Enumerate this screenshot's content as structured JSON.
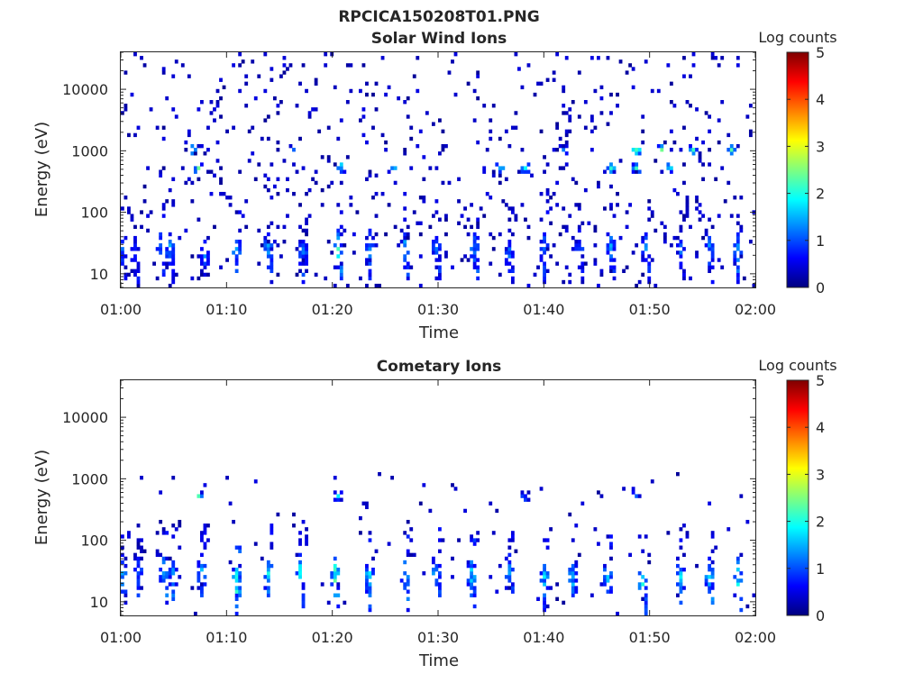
{
  "figure": {
    "title": "RPCICA150208T01.PNG"
  },
  "colormap": {
    "name": "jet",
    "stops": [
      "#00007f",
      "#0000ff",
      "#007fff",
      "#00ffff",
      "#7fff7f",
      "#ffff00",
      "#ff7f00",
      "#ff0000",
      "#7f0000"
    ]
  },
  "chart_data": [
    {
      "type": "heatmap",
      "title": "Solar Wind Ions",
      "xlabel": "Time",
      "ylabel": "Energy (eV)",
      "x_tick_labels": [
        "01:00",
        "01:10",
        "01:20",
        "01:30",
        "01:40",
        "01:50",
        "02:00"
      ],
      "x_range_minutes": [
        0,
        60
      ],
      "y_scale": "log",
      "y_range": [
        6,
        40000
      ],
      "y_ticks": [
        10,
        100,
        1000,
        10000
      ],
      "y_tick_labels": [
        "10",
        "100",
        "1000",
        "10000"
      ],
      "colorbar": {
        "label": "Log counts",
        "range": [
          0,
          5
        ],
        "ticks": [
          0,
          1,
          2,
          3,
          4,
          5
        ],
        "tick_labels": [
          "0",
          "1",
          "2",
          "3",
          "4",
          "5"
        ]
      },
      "bursts": [
        {
          "t": 0.2,
          "e": 25,
          "v": 1.2
        },
        {
          "t": 1.3,
          "e": 20,
          "v": 1.0
        },
        {
          "t": 3.8,
          "e": 25,
          "v": 1.3
        },
        {
          "t": 4.6,
          "e": 25,
          "v": 1.5
        },
        {
          "t": 7.8,
          "e": 20,
          "v": 1.2
        },
        {
          "t": 10.8,
          "e": 25,
          "v": 1.8
        },
        {
          "t": 14.0,
          "e": 25,
          "v": 1.6
        },
        {
          "t": 17.1,
          "e": 22,
          "v": 1.4
        },
        {
          "t": 20.5,
          "e": 25,
          "v": 2.0
        },
        {
          "t": 23.4,
          "e": 25,
          "v": 1.5
        },
        {
          "t": 26.8,
          "e": 25,
          "v": 1.6
        },
        {
          "t": 29.8,
          "e": 25,
          "v": 1.3
        },
        {
          "t": 33.4,
          "e": 25,
          "v": 1.5
        },
        {
          "t": 36.8,
          "e": 22,
          "v": 1.3
        },
        {
          "t": 39.9,
          "e": 25,
          "v": 1.4
        },
        {
          "t": 43.4,
          "e": 25,
          "v": 1.2
        },
        {
          "t": 46.3,
          "e": 25,
          "v": 1.5
        },
        {
          "t": 49.7,
          "e": 25,
          "v": 1.3
        },
        {
          "t": 52.9,
          "e": 25,
          "v": 1.2
        },
        {
          "t": 55.7,
          "e": 25,
          "v": 1.5
        },
        {
          "t": 58.2,
          "e": 25,
          "v": 1.7
        }
      ],
      "hotspots": [
        {
          "t": 6.6,
          "e": 1100,
          "v": 2.2
        },
        {
          "t": 7.2,
          "e": 500,
          "v": 2.6
        },
        {
          "t": 16.3,
          "e": 1100,
          "v": 1.8
        },
        {
          "t": 20.8,
          "e": 500,
          "v": 2.1
        },
        {
          "t": 26.0,
          "e": 500,
          "v": 2.0
        },
        {
          "t": 35.8,
          "e": 500,
          "v": 1.9
        },
        {
          "t": 38.2,
          "e": 500,
          "v": 2.2
        },
        {
          "t": 41.9,
          "e": 1100,
          "v": 1.9
        },
        {
          "t": 46.2,
          "e": 500,
          "v": 1.9
        },
        {
          "t": 48.6,
          "e": 1100,
          "v": 2.4
        },
        {
          "t": 48.8,
          "e": 500,
          "v": 2.5
        },
        {
          "t": 51.2,
          "e": 1100,
          "v": 2.3
        },
        {
          "t": 51.6,
          "e": 500,
          "v": 2.4
        },
        {
          "t": 54.2,
          "e": 1100,
          "v": 2.0
        },
        {
          "t": 57.6,
          "e": 1100,
          "v": 2.1
        }
      ],
      "scatter_density": 0.05
    },
    {
      "type": "heatmap",
      "title": "Cometary Ions",
      "xlabel": "Time",
      "ylabel": "Energy (eV)",
      "x_tick_labels": [
        "01:00",
        "01:10",
        "01:20",
        "01:30",
        "01:40",
        "01:50",
        "02:00"
      ],
      "x_range_minutes": [
        0,
        60
      ],
      "y_scale": "log",
      "y_range": [
        6,
        40000
      ],
      "y_ticks": [
        10,
        100,
        1000,
        10000
      ],
      "y_tick_labels": [
        "10",
        "100",
        "1000",
        "10000"
      ],
      "colorbar": {
        "label": "Log counts",
        "range": [
          0,
          5
        ],
        "ticks": [
          0,
          1,
          2,
          3,
          4,
          5
        ],
        "tick_labels": [
          "0",
          "1",
          "2",
          "3",
          "4",
          "5"
        ]
      },
      "bursts": [
        {
          "t": 0.2,
          "e": 30,
          "v": 1.6
        },
        {
          "t": 1.5,
          "e": 30,
          "v": 1.4
        },
        {
          "t": 4.0,
          "e": 30,
          "v": 1.7
        },
        {
          "t": 4.8,
          "e": 30,
          "v": 1.6
        },
        {
          "t": 7.5,
          "e": 30,
          "v": 1.7
        },
        {
          "t": 10.8,
          "e": 20,
          "v": 2.6
        },
        {
          "t": 13.8,
          "e": 30,
          "v": 1.9
        },
        {
          "t": 17.0,
          "e": 30,
          "v": 2.0
        },
        {
          "t": 20.3,
          "e": 25,
          "v": 2.5
        },
        {
          "t": 23.4,
          "e": 25,
          "v": 2.2
        },
        {
          "t": 26.8,
          "e": 25,
          "v": 2.0
        },
        {
          "t": 29.8,
          "e": 30,
          "v": 1.8
        },
        {
          "t": 33.2,
          "e": 25,
          "v": 1.9
        },
        {
          "t": 36.7,
          "e": 30,
          "v": 1.7
        },
        {
          "t": 39.9,
          "e": 25,
          "v": 1.8
        },
        {
          "t": 42.8,
          "e": 25,
          "v": 1.8
        },
        {
          "t": 46.0,
          "e": 25,
          "v": 1.9
        },
        {
          "t": 49.3,
          "e": 20,
          "v": 2.3
        },
        {
          "t": 52.8,
          "e": 25,
          "v": 1.9
        },
        {
          "t": 55.6,
          "e": 25,
          "v": 2.0
        },
        {
          "t": 58.3,
          "e": 25,
          "v": 2.2
        }
      ],
      "hotspots": [
        {
          "t": 7.3,
          "e": 500,
          "v": 2.0
        },
        {
          "t": 20.5,
          "e": 500,
          "v": 1.6
        },
        {
          "t": 38.3,
          "e": 500,
          "v": 1.2
        },
        {
          "t": 48.6,
          "e": 600,
          "v": 1.6
        }
      ],
      "scatter_density": 0.02
    }
  ]
}
